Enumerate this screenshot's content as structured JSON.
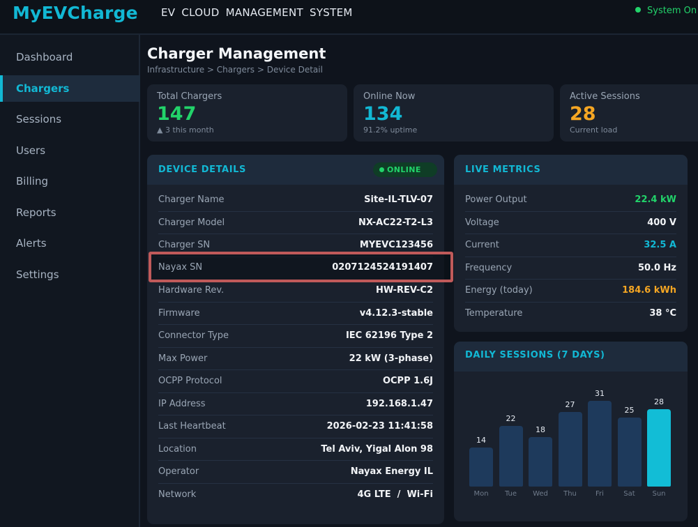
{
  "header": {
    "logo": "MyEVCharge",
    "title": "EV  CLOUD  MANAGEMENT  SYSTEM",
    "status": "System On"
  },
  "sidebar": {
    "items": [
      {
        "label": "Dashboard",
        "active": false
      },
      {
        "label": "Chargers",
        "active": true
      },
      {
        "label": "Sessions",
        "active": false
      },
      {
        "label": "Users",
        "active": false
      },
      {
        "label": "Billing",
        "active": false
      },
      {
        "label": "Reports",
        "active": false
      },
      {
        "label": "Alerts",
        "active": false
      },
      {
        "label": "Settings",
        "active": false
      }
    ]
  },
  "page": {
    "title": "Charger Management",
    "breadcrumb": "Infrastructure > Chargers > Device Detail"
  },
  "stats": [
    {
      "label": "Total Chargers",
      "value": "147",
      "sub": "▲ 3 this month",
      "color": "#22d36a"
    },
    {
      "label": "Online Now",
      "value": "134",
      "sub": "91.2% uptime",
      "color": "#12b8d4"
    },
    {
      "label": "Active Sessions",
      "value": "28",
      "sub": "Current load",
      "color": "#f5a623"
    }
  ],
  "device": {
    "title": "DEVICE DETAILS",
    "status": "ONLINE",
    "rows": [
      {
        "k": "Charger Name",
        "v": "Site-IL-TLV-07"
      },
      {
        "k": "Charger Model",
        "v": "NX-AC22-T2-L3"
      },
      {
        "k": "Charger SN",
        "v": "MYEVC123456"
      },
      {
        "k": "Nayax SN",
        "v": "0207124524191407"
      },
      {
        "k": "Hardware Rev.",
        "v": "HW-REV-C2"
      },
      {
        "k": "Firmware",
        "v": "v4.12.3-stable"
      },
      {
        "k": "Connector Type",
        "v": "IEC 62196 Type 2"
      },
      {
        "k": "Max Power",
        "v": "22 kW (3-phase)"
      },
      {
        "k": "OCPP Protocol",
        "v": "OCPP 1.6J"
      },
      {
        "k": "IP Address",
        "v": "192.168.1.47"
      },
      {
        "k": "Last Heartbeat",
        "v": "2026-02-23 11:41:58"
      },
      {
        "k": "Location",
        "v": "Tel Aviv, Yigal Alon 98"
      },
      {
        "k": "Operator",
        "v": "Nayax Energy IL"
      },
      {
        "k": "Network",
        "v": "4G LTE  /  Wi-Fi"
      }
    ]
  },
  "metrics": {
    "title": "LIVE METRICS",
    "rows": [
      {
        "k": "Power Output",
        "v": "22.4 kW",
        "color": "#22d36a"
      },
      {
        "k": "Voltage",
        "v": "400 V",
        "color": "#f2f4f7"
      },
      {
        "k": "Current",
        "v": "32.5 A",
        "color": "#12b8d4"
      },
      {
        "k": "Frequency",
        "v": "50.0 Hz",
        "color": "#f2f4f7"
      },
      {
        "k": "Energy (today)",
        "v": "184.6 kWh",
        "color": "#f5a623"
      },
      {
        "k": "Temperature",
        "v": "38 °C",
        "color": "#f2f4f7"
      }
    ]
  },
  "chart_data": {
    "type": "bar",
    "title": "DAILY SESSIONS (7 DAYS)",
    "categories": [
      "Mon",
      "Tue",
      "Wed",
      "Thu",
      "Fri",
      "Sat",
      "Sun"
    ],
    "values": [
      14,
      22,
      18,
      27,
      31,
      25,
      28
    ],
    "highlight_index": 6,
    "colors": {
      "bar": "#1e3a5c",
      "highlight": "#12bdd6"
    }
  }
}
